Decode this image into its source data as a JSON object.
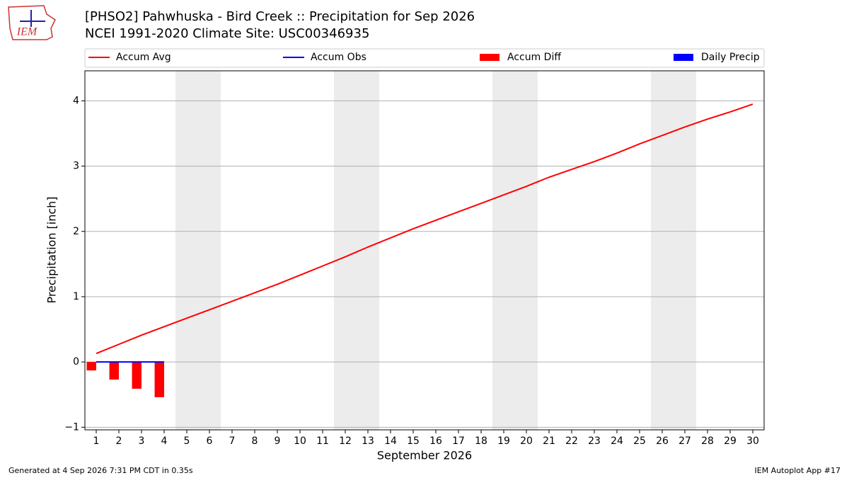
{
  "logo_text": "IEM",
  "footer": {
    "left": "Generated at 4 Sep 2026 7:31 PM CDT in 0.35s",
    "right": "IEM Autoplot App #17"
  },
  "chart_data": {
    "type": "bar-line",
    "title": "[PHSO2] Pahwhuska - Bird Creek :: Precipitation for Sep 2026",
    "subtitle": "NCEI 1991-2020 Climate Site: USC00346935",
    "x_label": "September 2026",
    "y_label": "Precipitation [inch]",
    "x": [
      1,
      2,
      3,
      4,
      5,
      6,
      7,
      8,
      9,
      10,
      11,
      12,
      13,
      14,
      15,
      16,
      17,
      18,
      19,
      20,
      21,
      22,
      23,
      24,
      25,
      26,
      27,
      28,
      29,
      30
    ],
    "xlim": [
      0.5,
      30.5
    ],
    "xticks": [
      1,
      2,
      3,
      4,
      5,
      6,
      7,
      8,
      9,
      10,
      11,
      12,
      13,
      14,
      15,
      16,
      17,
      18,
      19,
      20,
      21,
      22,
      23,
      24,
      25,
      26,
      27,
      28,
      29,
      30
    ],
    "ylim": [
      -1.04,
      4.46
    ],
    "yticks": [
      {
        "value": -1,
        "label": "−1"
      },
      0,
      1,
      2,
      3,
      4
    ],
    "grid": true,
    "shaded_days": [
      5,
      6,
      12,
      13,
      19,
      20,
      26,
      27
    ],
    "series": [
      {
        "name": "Accum Avg",
        "kind": "line",
        "color": "#ff0000",
        "values": [
          0.13,
          0.27,
          0.41,
          0.54,
          0.67,
          0.8,
          0.93,
          1.06,
          1.19,
          1.33,
          1.47,
          1.61,
          1.76,
          1.9,
          2.04,
          2.17,
          2.3,
          2.43,
          2.56,
          2.69,
          2.83,
          2.95,
          3.07,
          3.2,
          3.34,
          3.47,
          3.6,
          3.72,
          3.83,
          3.95
        ]
      },
      {
        "name": "Accum Obs",
        "kind": "line",
        "color": "#0000ff",
        "values": [
          0,
          0,
          0,
          0,
          null,
          null,
          null,
          null,
          null,
          null,
          null,
          null,
          null,
          null,
          null,
          null,
          null,
          null,
          null,
          null,
          null,
          null,
          null,
          null,
          null,
          null,
          null,
          null,
          null,
          null
        ]
      },
      {
        "name": "Accum Diff",
        "kind": "bar",
        "color": "#ff0000",
        "values": [
          -0.13,
          -0.27,
          -0.41,
          -0.54,
          null,
          null,
          null,
          null,
          null,
          null,
          null,
          null,
          null,
          null,
          null,
          null,
          null,
          null,
          null,
          null,
          null,
          null,
          null,
          null,
          null,
          null,
          null,
          null,
          null,
          null
        ]
      },
      {
        "name": "Daily Precip",
        "kind": "bar",
        "color": "#0000ff",
        "values": [
          0,
          0,
          0,
          0,
          null,
          null,
          null,
          null,
          null,
          null,
          null,
          null,
          null,
          null,
          null,
          null,
          null,
          null,
          null,
          null,
          null,
          null,
          null,
          null,
          null,
          null,
          null,
          null,
          null,
          null
        ]
      }
    ]
  }
}
